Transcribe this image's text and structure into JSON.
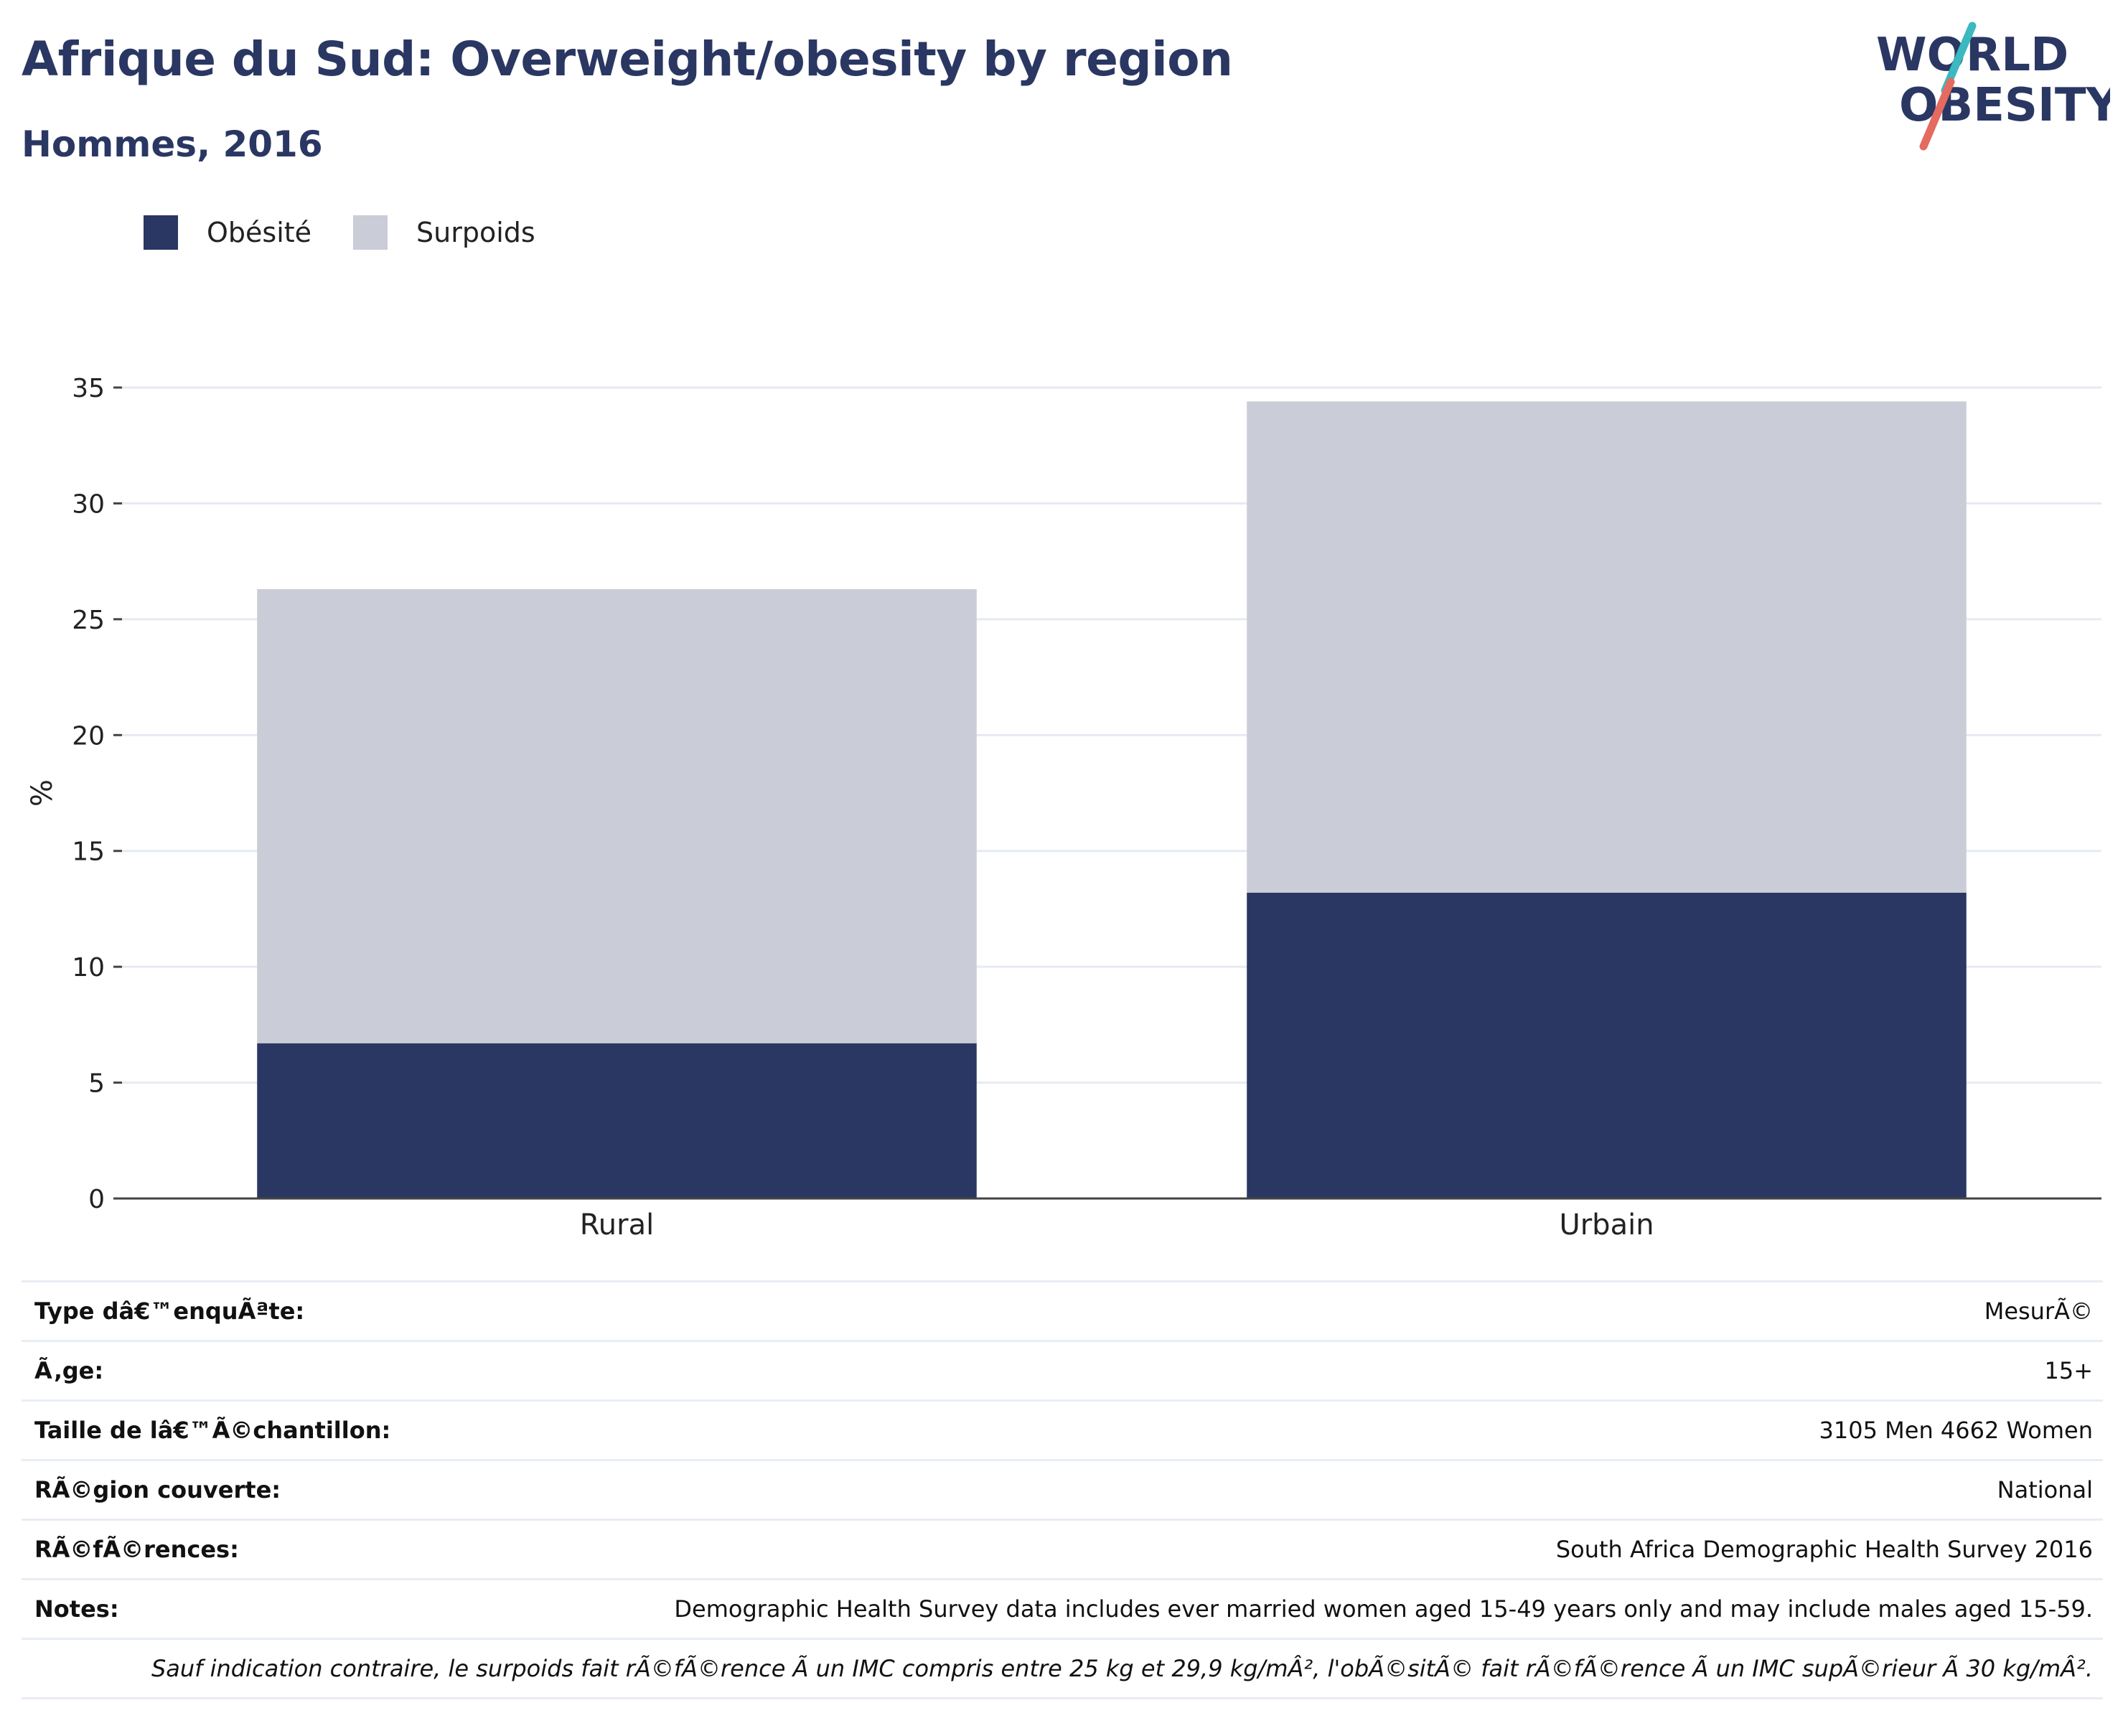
{
  "header": {
    "title": "Afrique du Sud: Overweight/obesity by region",
    "subtitle": "Hommes, 2016"
  },
  "logo": {
    "line1": "WORLD",
    "line2": "OBESITY",
    "stripe_colors": [
      "#3bb8c0",
      "#e56a5f"
    ]
  },
  "colors": {
    "obesity": "#2a3763",
    "overweight": "#cacdd8",
    "title": "#2a3763"
  },
  "legend": {
    "items": [
      {
        "label": "Obésité",
        "color": "#2a3763"
      },
      {
        "label": "Surpoids",
        "color": "#cacdd8"
      }
    ]
  },
  "chart_data": {
    "type": "bar",
    "stacked": true,
    "categories": [
      "Rural",
      "Urbain"
    ],
    "series": [
      {
        "name": "Obésité",
        "values": [
          6.7,
          13.2
        ]
      },
      {
        "name": "Surpoids",
        "values": [
          19.6,
          21.2
        ]
      }
    ],
    "ylabel": "%",
    "xlabel": "",
    "ylim": [
      0,
      35
    ],
    "yticks": [
      0,
      5,
      10,
      15,
      20,
      25,
      30,
      35
    ],
    "grid": true,
    "legend_position": "top-left"
  },
  "info_table": {
    "rows": [
      {
        "label": "Type dâ€™enquÃªte:",
        "value": "MesurÃ©"
      },
      {
        "label": "Ã‚ge:",
        "value": "15+"
      },
      {
        "label": "Taille de lâ€™Ã©chantillon:",
        "value": "3105 Men 4662 Women"
      },
      {
        "label": "RÃ©gion couverte:",
        "value": "National"
      },
      {
        "label": "RÃ©fÃ©rences:",
        "value": "South Africa Demographic Health Survey 2016"
      },
      {
        "label": "Notes:",
        "value": "Demographic Health Survey data includes ever married women aged 15-49 years only and may include males aged 15-59."
      }
    ],
    "footnote": "Sauf indication contraire, le surpoids fait rÃ©fÃ©rence Ã  un IMC compris entre 25 kg et 29,9 kg/mÂ², l'obÃ©sitÃ© fait rÃ©fÃ©rence Ã  un IMC supÃ©rieur Ã  30 kg/mÂ²."
  }
}
